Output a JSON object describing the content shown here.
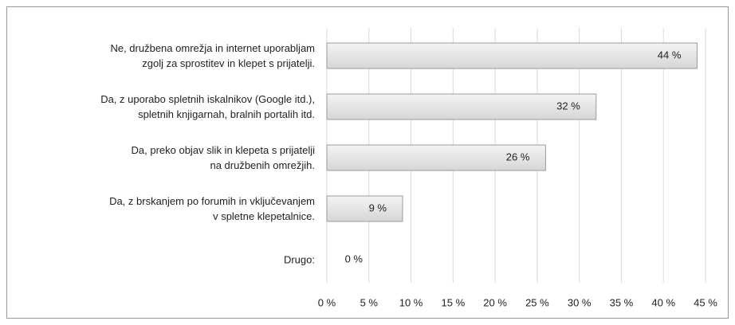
{
  "chart_data": {
    "type": "bar",
    "orientation": "horizontal",
    "categories": [
      "Ne, družbena omrežja in internet uporabljam\nzgolj za sprostitev in klepet s prijatelji.",
      "Da, z uporabo spletnih iskalnikov (Google itd.),\nspletnih knjigarnah, bralnih portalih itd.",
      "Da, preko objav slik in klepeta s prijatelji\nna družbenih omrežjih.",
      "Da, z brskanjem po forumih in vključevanjem\nv spletne klepetalnice.",
      "Drugo:"
    ],
    "values": [
      44,
      32,
      26,
      9,
      0
    ],
    "value_labels": [
      "44 %",
      "32 %",
      "26 %",
      "9 %",
      "0 %"
    ],
    "color": "#e3e3e3",
    "xlim": [
      0,
      45
    ],
    "xticks": [
      {
        "value": 0,
        "label": "0 %"
      },
      {
        "value": 5,
        "label": "5 %"
      },
      {
        "value": 10,
        "label": "10 %"
      },
      {
        "value": 15,
        "label": "15 %"
      },
      {
        "value": 20,
        "label": "20 %"
      },
      {
        "value": 25,
        "label": "25 %"
      },
      {
        "value": 30,
        "label": "30 %"
      },
      {
        "value": 35,
        "label": "35 %"
      },
      {
        "value": 40,
        "label": "40 %"
      },
      {
        "value": 45,
        "label": "45 %"
      }
    ],
    "grid": true
  }
}
